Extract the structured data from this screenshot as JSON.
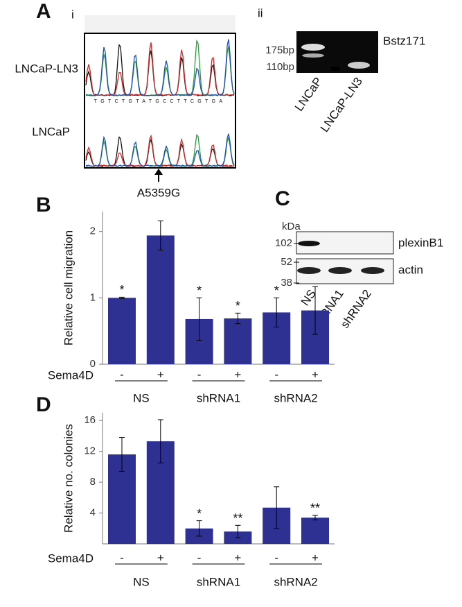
{
  "panel_a": {
    "label": "A",
    "sub_i": "i",
    "sub_ii": "ii",
    "trace_labels": [
      "LNCaP-LN3",
      "LNCaP"
    ],
    "sequence": "TGTCTGTATGCCTTCGTGA",
    "mutation": "A5359G",
    "gel_markers": [
      "175bp",
      "110bp"
    ],
    "enzyme": "Bstz171",
    "lanes": [
      "LNCaP",
      "LNCaP-LN3"
    ]
  },
  "panel_c": {
    "label": "C",
    "unit": "kDa",
    "markers": [
      "102",
      "52",
      "38"
    ],
    "proteins": [
      "plexinB1",
      "actin"
    ],
    "lanes": [
      "NS",
      "shRNA1",
      "shRNA2"
    ]
  },
  "chart_data": [
    {
      "type": "bar",
      "panel": "B",
      "y_label": "Relative cell migration",
      "condition_label": "Sema4D",
      "categories": [
        "-",
        "+",
        "-",
        "+",
        "-",
        "+"
      ],
      "groups": [
        "NS",
        "shRNA1",
        "shRNA2"
      ],
      "values": [
        1.0,
        1.94,
        0.68,
        0.69,
        0.78,
        0.81
      ],
      "errors": [
        0.01,
        0.22,
        0.32,
        0.08,
        0.22,
        0.36
      ],
      "annotations": [
        "*",
        null,
        "*",
        "*",
        "*",
        null
      ],
      "color": "#2e3192",
      "ylim": [
        0,
        2.3
      ],
      "yticks": [
        0,
        1,
        2
      ]
    },
    {
      "type": "bar",
      "panel": "D",
      "y_label": "Relative no. colonies",
      "condition_label": "Sema4D",
      "categories": [
        "-",
        "+",
        "-",
        "+",
        "-",
        "+"
      ],
      "groups": [
        "NS",
        "shRNA1",
        "shRNA2"
      ],
      "values": [
        11.6,
        13.3,
        2.0,
        1.6,
        4.7,
        3.4
      ],
      "errors": [
        2.2,
        2.8,
        1.0,
        0.8,
        2.7,
        0.3
      ],
      "annotations": [
        null,
        null,
        "*",
        "**",
        null,
        "**"
      ],
      "color": "#2e3192",
      "ylim": [
        0,
        17
      ],
      "yticks": [
        4,
        8,
        12,
        16
      ]
    }
  ]
}
